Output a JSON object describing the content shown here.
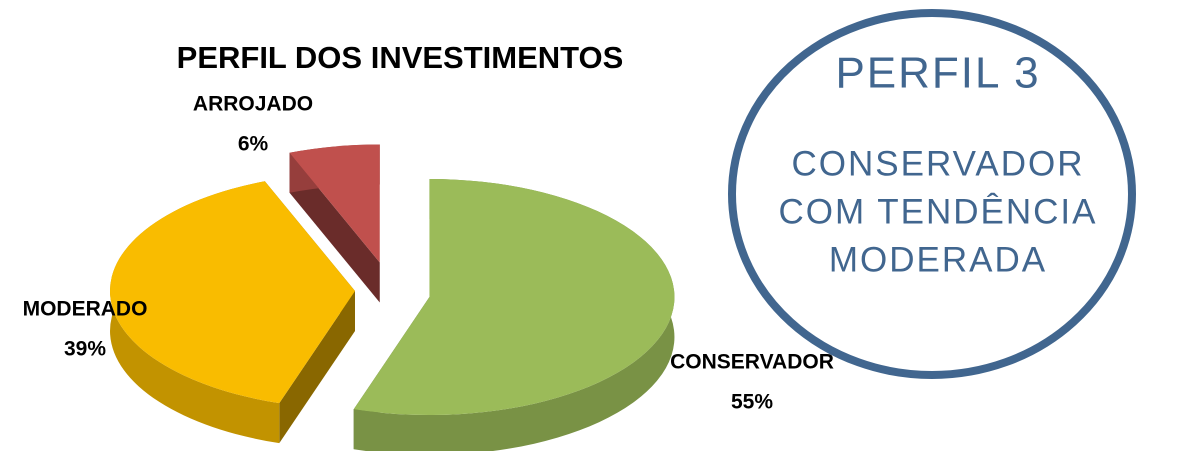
{
  "chart_data": {
    "type": "pie",
    "title": "PERFIL DOS INVESTIMENTOS",
    "categories": [
      "CONSERVADOR",
      "MODERADO",
      "ARROJADO"
    ],
    "values": [
      55,
      39,
      6
    ],
    "value_labels": [
      "55%",
      "39%",
      "6%"
    ],
    "colors": [
      "#9bbb59",
      "#f9bc00",
      "#c0504d"
    ]
  },
  "badge": {
    "lines": [
      "PERFIL 3",
      "CONSERVADOR",
      "COM TENDÊNCIA",
      "MODERADA"
    ],
    "color": "#41668f"
  }
}
